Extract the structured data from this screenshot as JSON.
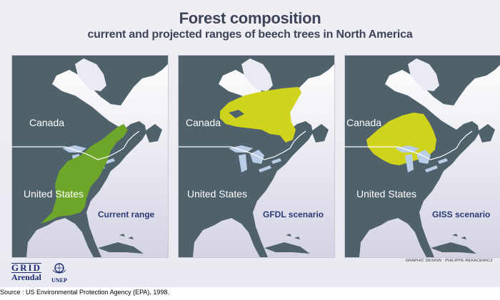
{
  "title": "Forest composition",
  "subtitle": "current and projected ranges of beech trees in North America",
  "colors": {
    "land": "#4f616b",
    "water_light": "#eaeaf2",
    "water_dark": "#d6d6e6",
    "current_range": "#6ea62a",
    "projected_range": "#cfd31c",
    "lakes": "#b9cee6",
    "border": "#ffffff",
    "title": "#3d4458",
    "scenario": "#2a3a74"
  },
  "panels": [
    {
      "country_label_1": "Canada",
      "country_label_2": "United States",
      "scenario_label": "Current range",
      "range_color": "current_range"
    },
    {
      "country_label_1": "Canada",
      "country_label_2": "United States",
      "scenario_label": "GFDL scenario",
      "range_color": "projected_range"
    },
    {
      "country_label_1": "Canada",
      "country_label_2": "United States",
      "scenario_label": "GISS scenario",
      "range_color": "projected_range"
    }
  ],
  "credit": "GRAPHIC DESIGN : PHILIPPE REKACEWICZ",
  "logos": {
    "grid": "GRID",
    "arendal": "Arendal",
    "unep": "UNEP"
  },
  "source": "Source : US Environmental Protection Agency (EPA), 1998."
}
